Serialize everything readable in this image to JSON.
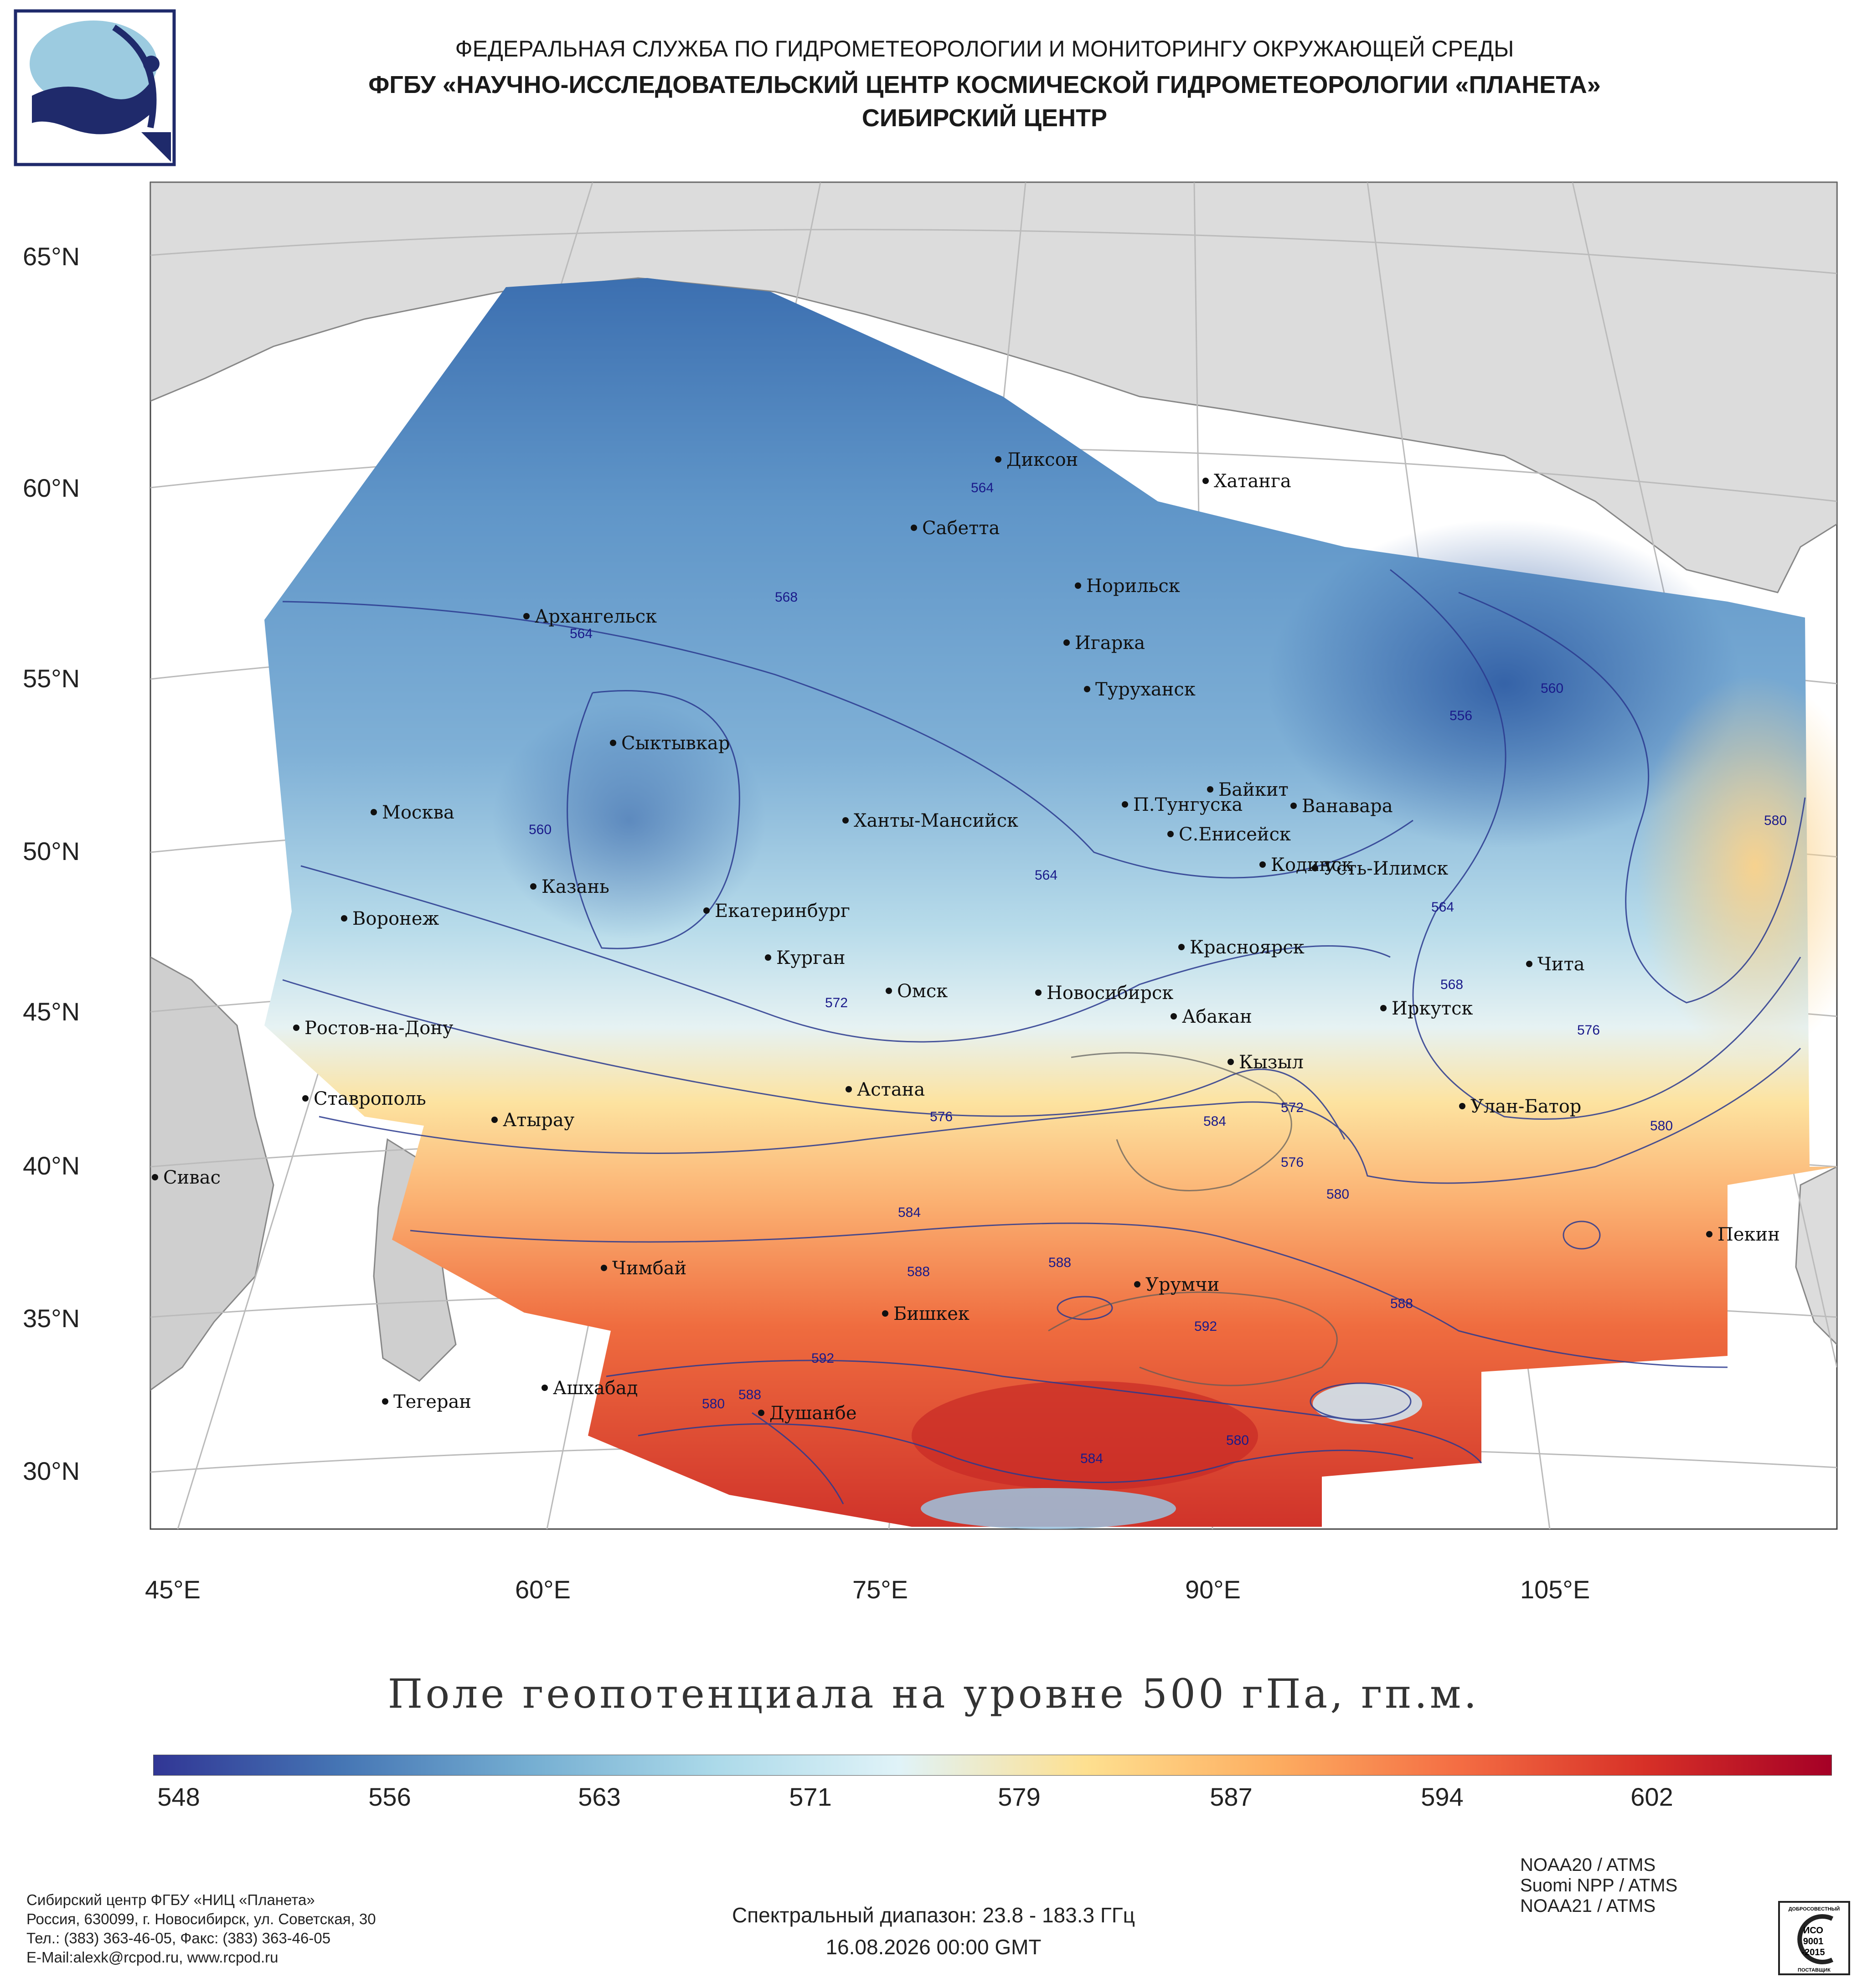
{
  "header": {
    "line1": "ФЕДЕРАЛЬНАЯ СЛУЖБА ПО ГИДРОМЕТЕОРОЛОГИИ И МОНИТОРИНГУ ОКРУЖАЮЩЕЙ СРЕДЫ",
    "line2": "ФГБУ «НАУЧНО-ИССЛЕДОВАТЕЛЬСКИЙ ЦЕНТР КОСМИЧЕСКОЙ ГИДРОМЕТЕОРОЛОГИИ «ПЛАНЕТА»",
    "line3": "СИБИРСКИЙ ЦЕНТР"
  },
  "axes": {
    "lat_labels": [
      "65°N",
      "60°N",
      "55°N",
      "50°N",
      "45°N",
      "40°N",
      "35°N",
      "30°N"
    ],
    "lon_labels": [
      "45°E",
      "60°E",
      "75°E",
      "90°E",
      "105°E"
    ]
  },
  "cities": [
    "Диксон",
    "Хатанга",
    "Сабетта",
    "Норильск",
    "Игарка",
    "Туруханск",
    "Архангельск",
    "Сыктывкар",
    "Байкит",
    "П.Тунгуска",
    "Ванавара",
    "С.Енисейск",
    "Москва",
    "Ханты-Мансийск",
    "Кодинск",
    "Усть-Илимск",
    "Казань",
    "Екатеринбург",
    "Воронеж",
    "Курган",
    "Красноярск",
    "Чита",
    "Омск",
    "Новосибирск",
    "Иркутск",
    "Ростов-на-Дону",
    "Абакан",
    "Кызыл",
    "Астана",
    "Ставрополь",
    "Улан-Батор",
    "Атырау",
    "Сивас",
    "Пекин",
    "Чимбай",
    "Урумчи",
    "Бишкек",
    "Ашхабад",
    "Тегеран",
    "Душанбе"
  ],
  "contour_labels": [
    "564",
    "568",
    "564",
    "560",
    "556",
    "560",
    "580",
    "564",
    "564",
    "568",
    "572",
    "576",
    "576",
    "572",
    "576",
    "580",
    "580",
    "584",
    "584",
    "588",
    "588",
    "588",
    "592",
    "592",
    "588",
    "584",
    "580",
    "580"
  ],
  "map_title": "Поле геопотенциала на уровне 500 гПа, гп.м.",
  "colorbar": {
    "labels": [
      "548",
      "556",
      "563",
      "571",
      "579",
      "587",
      "594",
      "602"
    ],
    "colors": [
      "#313695",
      "#4575b4",
      "#74add1",
      "#abd9e9",
      "#e0f3f8",
      "#fee090",
      "#fdae61",
      "#f46d43",
      "#d73027",
      "#a50026"
    ]
  },
  "footer": {
    "org": "Сибирский центр ФГБУ «НИЦ «Планета»",
    "address": "Россия, 630099, г. Новосибирск, ул. Советская, 30",
    "phones": "Тел.: (383) 363-46-05, Факс: (383) 363-46-05",
    "email": "E-Mail:alexk@rcpod.ru, www.rcpod.ru",
    "spectral": "Спектральный диапазон: 23.8 - 183.3 ГГц",
    "date": "16.08.2026 00:00 GMT",
    "satellites": [
      "NOAA20 / ATMS",
      "Suomi NPP / ATMS",
      "NOAA21 / ATMS"
    ],
    "iso": {
      "top": "ДОБРОСОВЕСТНЫЙ",
      "mid1": "ИСО",
      "mid2": "9001",
      "mid3": "-2015",
      "bottom": "ПОСТАВЩИК"
    }
  }
}
